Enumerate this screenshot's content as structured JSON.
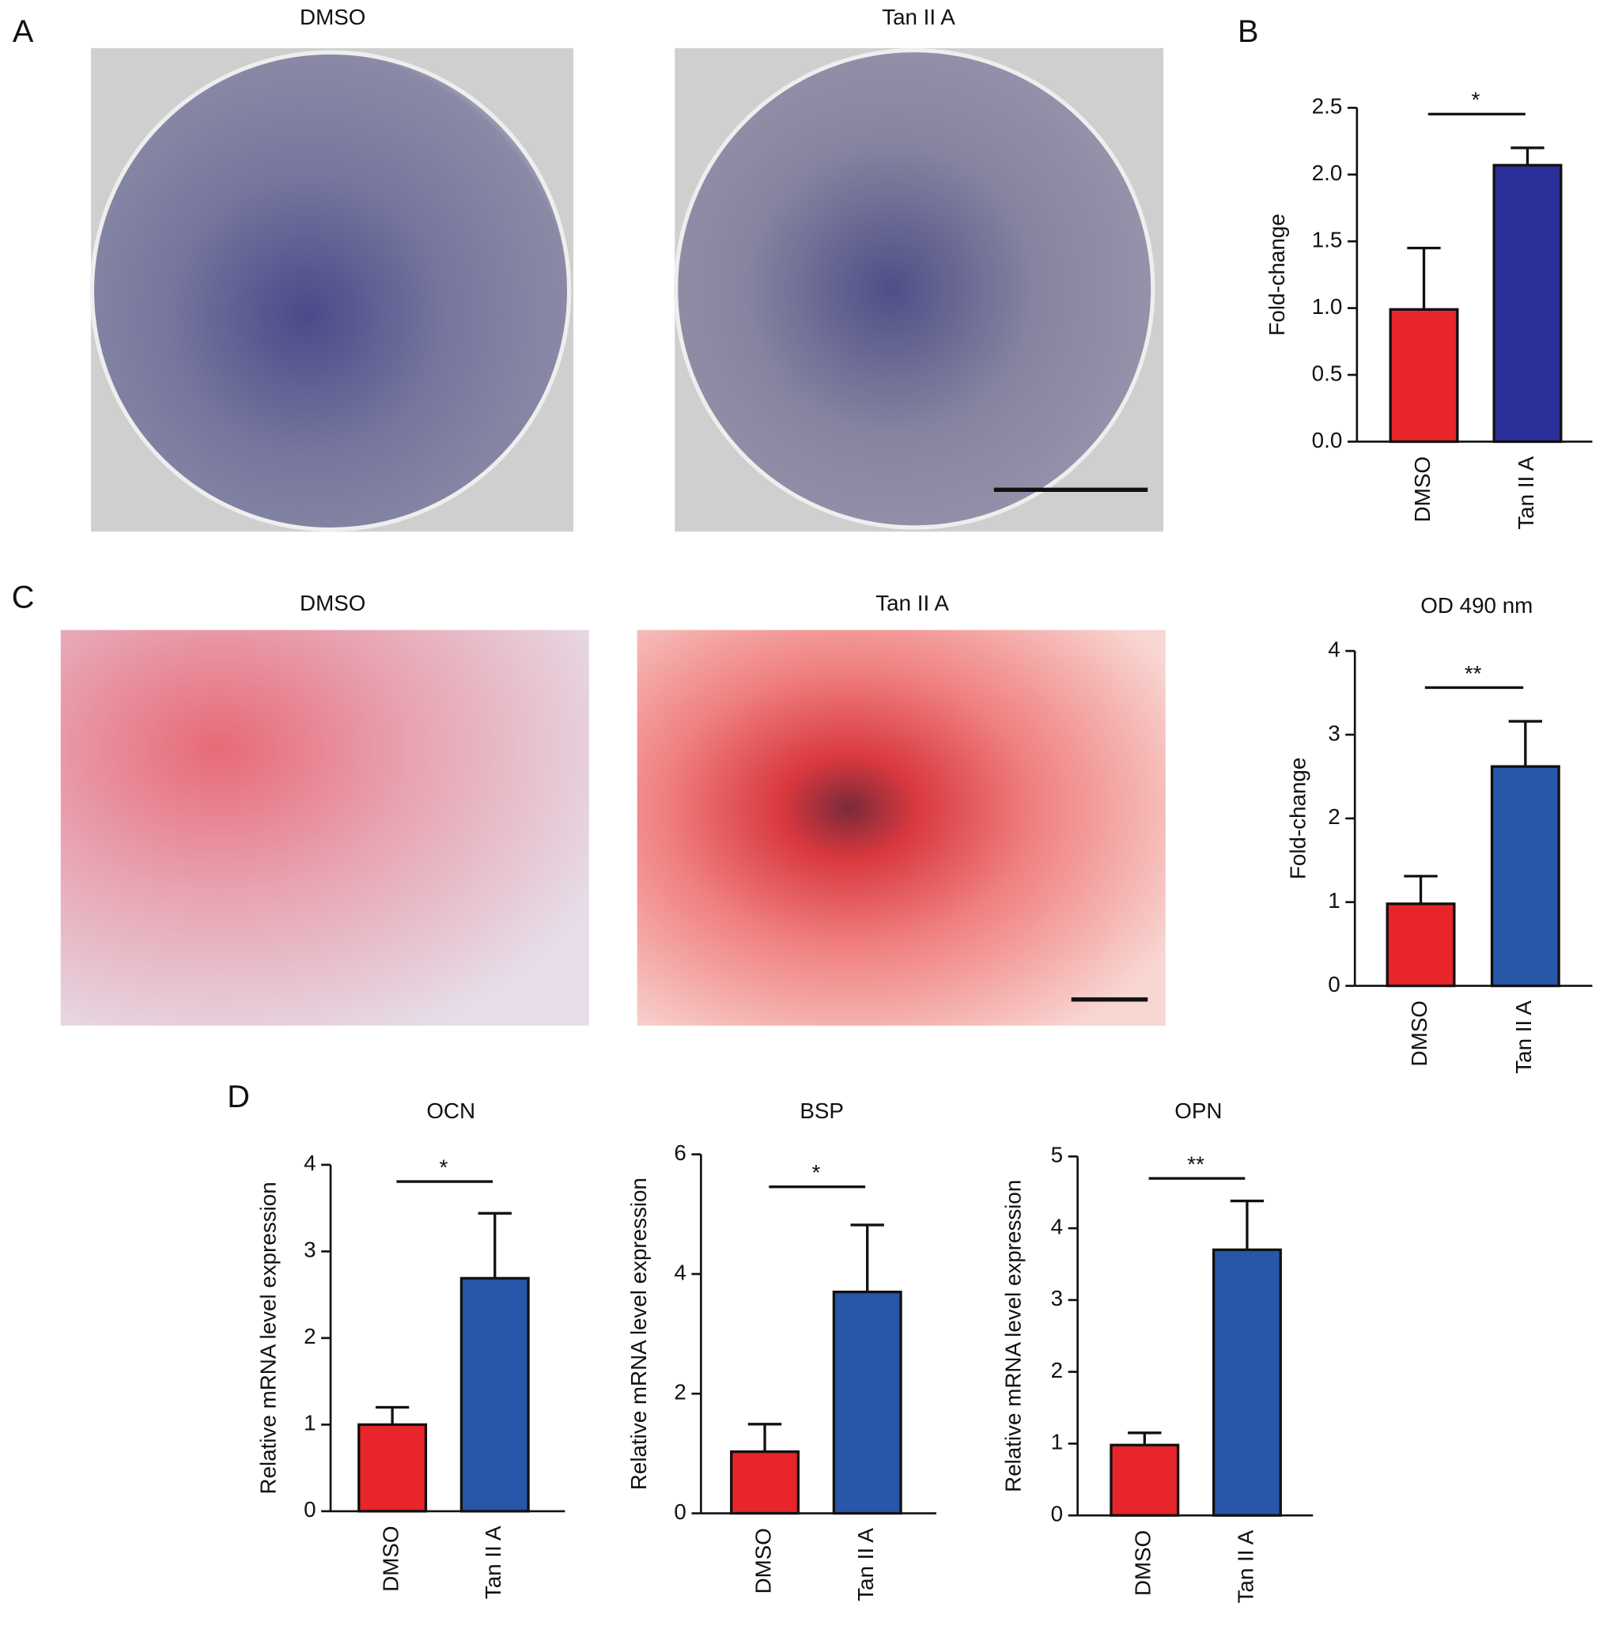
{
  "panels": [
    {
      "label": "A",
      "images": [
        "DMSO",
        "Tan II A"
      ]
    },
    {
      "label": "B"
    },
    {
      "label": "C",
      "images": [
        "DMSO",
        "Tan II A"
      ]
    },
    {
      "label": "D"
    }
  ],
  "chart_data": [
    {
      "type": "bar",
      "ylabel": "Fold-change",
      "categories": [
        "DMSO",
        "Tan II A"
      ],
      "values": [
        0.99,
        2.07
      ],
      "errors": [
        0.46,
        0.13
      ],
      "colors": [
        "#e8252b",
        "#2b2f9a"
      ],
      "significance": "*",
      "ylim": [
        0,
        2.5
      ],
      "yticks": [
        {
          "value": 0,
          "label": "0.0"
        },
        0.5,
        {
          "value": 1,
          "label": "1.0"
        },
        1.5,
        {
          "value": 2,
          "label": "2.0"
        },
        2.5
      ]
    },
    {
      "type": "bar",
      "title": "OD 490 nm",
      "ylabel": "Fold-change",
      "categories": [
        "DMSO",
        "Tan II A"
      ],
      "values": [
        0.98,
        2.62
      ],
      "errors": [
        0.33,
        0.54
      ],
      "colors": [
        "#e8252b",
        "#2856a8"
      ],
      "significance": "**",
      "ylim": [
        0,
        4
      ],
      "yticks": [
        0,
        1,
        2,
        3,
        4
      ]
    },
    {
      "type": "bar",
      "title": "OCN",
      "ylabel": "Relative mRNA level expression",
      "categories": [
        "DMSO",
        "Tan II A"
      ],
      "values": [
        1.0,
        2.69
      ],
      "errors": [
        0.2,
        0.75
      ],
      "colors": [
        "#e8252b",
        "#2856a8"
      ],
      "significance": "*",
      "ylim": [
        0,
        4
      ],
      "yticks": [
        0,
        1,
        2,
        3,
        4
      ]
    },
    {
      "type": "bar",
      "title": "BSP",
      "ylabel": "Relative mRNA level expression",
      "categories": [
        "DMSO",
        "Tan II A"
      ],
      "values": [
        1.03,
        3.7
      ],
      "errors": [
        0.46,
        1.12
      ],
      "colors": [
        "#e8252b",
        "#2856a8"
      ],
      "significance": "*",
      "ylim": [
        0,
        6
      ],
      "yticks": [
        0,
        2,
        4,
        6
      ]
    },
    {
      "type": "bar",
      "title": "OPN",
      "ylabel": "Relative mRNA level expression",
      "categories": [
        "DMSO",
        "Tan II A"
      ],
      "values": [
        0.98,
        3.7
      ],
      "errors": [
        0.17,
        0.68
      ],
      "colors": [
        "#e8252b",
        "#2856a8"
      ],
      "significance": "**",
      "ylim": [
        0,
        5
      ],
      "yticks": [
        0,
        1,
        2,
        3,
        4,
        5
      ]
    }
  ]
}
